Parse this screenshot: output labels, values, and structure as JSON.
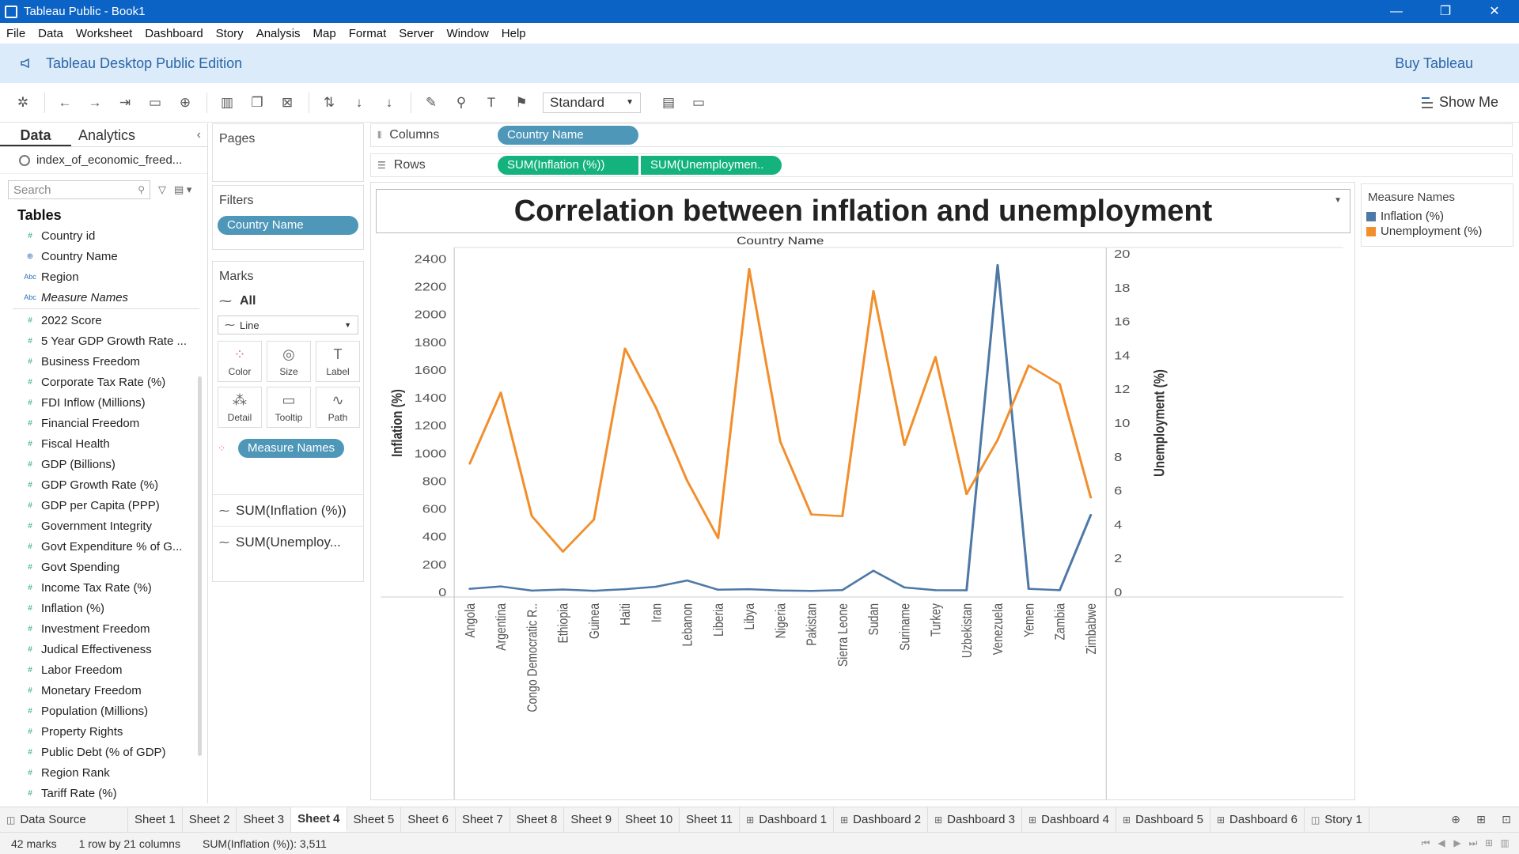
{
  "window": {
    "title": "Tableau Public - Book1",
    "controls": [
      "—",
      "❐",
      "✕"
    ]
  },
  "menu": [
    "File",
    "Data",
    "Worksheet",
    "Dashboard",
    "Story",
    "Analysis",
    "Map",
    "Format",
    "Server",
    "Window",
    "Help"
  ],
  "banner": {
    "edition": "Tableau Desktop Public Edition",
    "buy": "Buy Tableau"
  },
  "toolbar": {
    "fit": "Standard",
    "show_me": "Show Me"
  },
  "data_pane": {
    "tabs": [
      "Data",
      "Analytics"
    ],
    "datasource": "index_of_economic_freed...",
    "search_placeholder": "Search",
    "tables_heading": "Tables",
    "fields": [
      {
        "type": "#",
        "name": "Country id"
      },
      {
        "type": "globe",
        "name": "Country Name"
      },
      {
        "type": "Abc",
        "name": "Region"
      },
      {
        "type": "Abc",
        "name": "Measure Names",
        "italic": true
      },
      {
        "type": "#",
        "name": "2022 Score"
      },
      {
        "type": "#",
        "name": "5 Year GDP Growth Rate ..."
      },
      {
        "type": "#",
        "name": "Business Freedom"
      },
      {
        "type": "#",
        "name": "Corporate Tax Rate (%)"
      },
      {
        "type": "#",
        "name": "FDI Inflow (Millions)"
      },
      {
        "type": "#",
        "name": "Financial Freedom"
      },
      {
        "type": "#",
        "name": "Fiscal Health"
      },
      {
        "type": "#",
        "name": "GDP (Billions)"
      },
      {
        "type": "#",
        "name": "GDP Growth Rate (%)"
      },
      {
        "type": "#",
        "name": "GDP per Capita (PPP)"
      },
      {
        "type": "#",
        "name": "Government Integrity"
      },
      {
        "type": "#",
        "name": "Govt Expenditure % of G..."
      },
      {
        "type": "#",
        "name": "Govt Spending"
      },
      {
        "type": "#",
        "name": "Income Tax Rate (%)"
      },
      {
        "type": "#",
        "name": "Inflation (%)"
      },
      {
        "type": "#",
        "name": "Investment Freedom"
      },
      {
        "type": "#",
        "name": "Judical Effectiveness"
      },
      {
        "type": "#",
        "name": "Labor Freedom"
      },
      {
        "type": "#",
        "name": "Monetary Freedom"
      },
      {
        "type": "#",
        "name": "Population (Millions)"
      },
      {
        "type": "#",
        "name": "Property Rights"
      },
      {
        "type": "#",
        "name": "Public Debt (% of GDP)"
      },
      {
        "type": "#",
        "name": "Region Rank"
      },
      {
        "type": "#",
        "name": "Tariff Rate (%)"
      }
    ]
  },
  "pages": {
    "label": "Pages"
  },
  "filters": {
    "label": "Filters",
    "pill": "Country Name"
  },
  "marks": {
    "label": "Marks",
    "all": "All",
    "type": "Line",
    "buttons": [
      "Color",
      "Size",
      "Label",
      "Detail",
      "Tooltip",
      "Path"
    ],
    "color_pill": "Measure Names",
    "measures": [
      "SUM(Inflation (%))",
      "SUM(Unemploy..."
    ]
  },
  "shelves": {
    "columns_label": "Columns",
    "columns_pill": "Country Name",
    "rows_label": "Rows",
    "rows_pills": [
      "SUM(Inflation (%))",
      "SUM(Unemploymen.."
    ]
  },
  "legend": {
    "title": "Measure Names",
    "items": [
      {
        "label": "Inflation (%)",
        "color": "#4e79a7"
      },
      {
        "label": "Unemployment (%)",
        "color": "#f28e2b"
      }
    ]
  },
  "chart_data": {
    "type": "line",
    "title": "Correlation between inflation and unemployment",
    "xlabel": "Country Name",
    "categories": [
      "Angola",
      "Argentina",
      "Congo Democratic R..",
      "Ethiopia",
      "Guinea",
      "Haiti",
      "Iran",
      "Lebanon",
      "Liberia",
      "Libya",
      "Nigeria",
      "Pakistan",
      "Sierra Leone",
      "Sudan",
      "Suriname",
      "Turkey",
      "Uzbekistan",
      "Venezuela",
      "Yemen",
      "Zambia",
      "Zimbabwe"
    ],
    "series": [
      {
        "name": "Inflation (%)",
        "axis": "left",
        "color": "#4e79a7",
        "values": [
          25,
          42,
          12,
          20,
          11,
          22,
          40,
          85,
          18,
          22,
          13,
          10,
          16,
          155,
          35,
          15,
          14,
          2355,
          25,
          15,
          557
        ]
      },
      {
        "name": "Unemployment (%)",
        "axis": "right",
        "color": "#f28e2b",
        "values": [
          7.6,
          11.8,
          4.5,
          2.4,
          4.3,
          14.4,
          10.9,
          6.6,
          3.2,
          19.1,
          8.9,
          4.6,
          4.5,
          17.8,
          8.7,
          13.9,
          5.8,
          9.0,
          13.4,
          12.3,
          5.6
        ]
      }
    ],
    "ylabel_left": "Inflation (%)",
    "ylabel_right": "Unemployment (%)",
    "ylim_left": [
      0,
      2400
    ],
    "ylim_right": [
      0,
      20
    ],
    "yticks_left": [
      0,
      200,
      400,
      600,
      800,
      1000,
      1200,
      1400,
      1600,
      1800,
      2000,
      2200,
      2400
    ],
    "yticks_right": [
      0,
      2,
      4,
      6,
      8,
      10,
      12,
      14,
      16,
      18,
      20
    ],
    "grid": false
  },
  "sheet_tabs": {
    "data_source": "Data Source",
    "sheets": [
      "Sheet 1",
      "Sheet 2",
      "Sheet 3",
      "Sheet 4",
      "Sheet 5",
      "Sheet 6",
      "Sheet 7",
      "Sheet 8",
      "Sheet 9",
      "Sheet 10",
      "Sheet 11"
    ],
    "active": "Sheet 4",
    "dashboards": [
      "Dashboard 1",
      "Dashboard 2",
      "Dashboard 3",
      "Dashboard 4",
      "Dashboard 5",
      "Dashboard 6"
    ],
    "stories": [
      "Story 1"
    ]
  },
  "status": {
    "marks": "42 marks",
    "dims": "1 row by 21 columns",
    "sum": "SUM(Inflation (%)): 3,511"
  }
}
